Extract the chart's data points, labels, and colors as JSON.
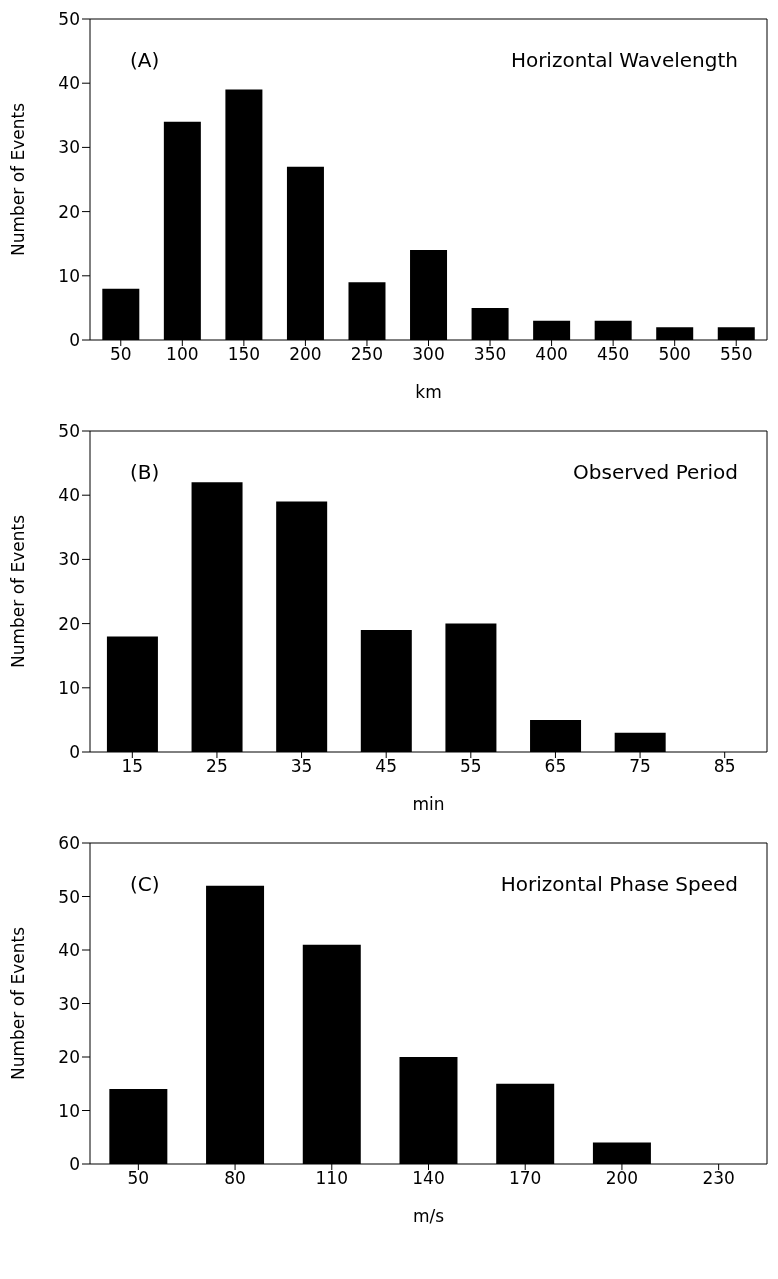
{
  "chart_data": [
    {
      "type": "bar",
      "title": "Horizontal Wavelength",
      "annotations": [
        "(A)"
      ],
      "xlabel": "km",
      "ylabel": "Number of Events",
      "categories": [
        "50",
        "100",
        "150",
        "200",
        "250",
        "300",
        "350",
        "400",
        "450",
        "500",
        "550"
      ],
      "values": [
        8,
        34,
        39,
        27,
        9,
        14,
        5,
        3,
        3,
        2,
        2
      ],
      "color": "#000000",
      "ylim": [
        0,
        50
      ],
      "yticks": [
        0,
        10,
        20,
        30,
        40,
        50
      ],
      "grid": false,
      "legend": false
    },
    {
      "type": "bar",
      "title": "Observed Period",
      "annotations": [
        "(B)"
      ],
      "xlabel": "min",
      "ylabel": "Number of Events",
      "categories": [
        "15",
        "25",
        "35",
        "45",
        "55",
        "65",
        "75",
        "85"
      ],
      "values": [
        18,
        42,
        39,
        19,
        20,
        5,
        3,
        0
      ],
      "color": "#000000",
      "ylim": [
        0,
        50
      ],
      "yticks": [
        0,
        10,
        20,
        30,
        40,
        50
      ],
      "grid": false,
      "legend": false
    },
    {
      "type": "bar",
      "title": "Horizontal Phase Speed",
      "annotations": [
        "(C)"
      ],
      "xlabel": "m/s",
      "ylabel": "Number of Events",
      "categories": [
        "50",
        "80",
        "110",
        "140",
        "170",
        "200",
        "230"
      ],
      "values": [
        14,
        52,
        41,
        20,
        15,
        4,
        0
      ],
      "color": "#000000",
      "ylim": [
        0,
        60
      ],
      "yticks": [
        0,
        10,
        20,
        30,
        40,
        50,
        60
      ],
      "grid": false,
      "legend": false
    }
  ]
}
